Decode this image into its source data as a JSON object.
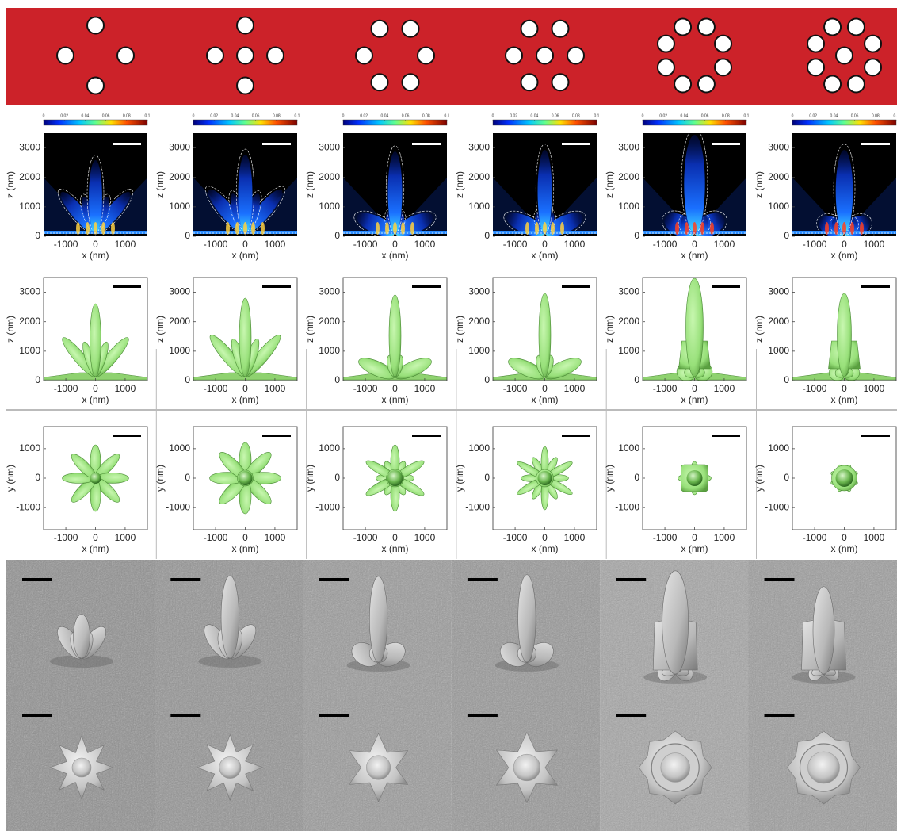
{
  "colorbar": {
    "range": [
      0,
      0.1
    ],
    "ticks": [
      0,
      0.02,
      0.04,
      0.06,
      0.08,
      0.1
    ]
  },
  "field_map": {
    "x_label": "x (nm)",
    "y_label": "z (nm)",
    "xlim": [
      -1750,
      1750
    ],
    "ylim": [
      0,
      3500
    ],
    "xticks": [
      -1000,
      0,
      1000
    ],
    "yticks": [
      0,
      1000,
      2000,
      3000
    ]
  },
  "isosurface_side": {
    "x_label": "x (nm)",
    "y_label": "z (nm)",
    "xlim": [
      -1750,
      1750
    ],
    "ylim": [
      0,
      3500
    ],
    "xticks": [
      -1000,
      0,
      1000
    ],
    "yticks": [
      0,
      1000,
      2000,
      3000
    ]
  },
  "isosurface_top": {
    "x_label": "x (nm)",
    "y_label": "y (nm)",
    "xlim": [
      -1750,
      1750
    ],
    "ylim": [
      -1750,
      1750
    ],
    "xticks": [
      -1000,
      0,
      1000
    ],
    "yticks": [
      -1000,
      0,
      1000
    ]
  }
}
